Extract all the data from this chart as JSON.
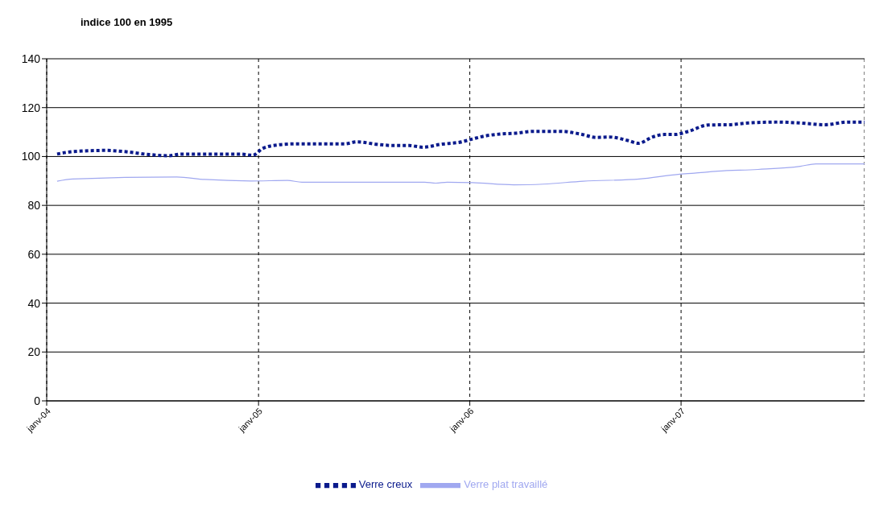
{
  "chart_data": {
    "type": "line",
    "title": "indice 100 en 1995",
    "xlim": [
      "2004-01-01",
      "2007-11-14"
    ],
    "xticks": [
      {
        "value": "2004-01-01",
        "label": "janv-04"
      },
      {
        "value": "2005-01-01",
        "label": "janv-05"
      },
      {
        "value": "2006-01-01",
        "label": "janv-06"
      },
      {
        "value": "2007-01-01",
        "label": "janv-07"
      }
    ],
    "ylim": [
      0,
      140
    ],
    "yticks": [
      0,
      20,
      40,
      60,
      80,
      100,
      120,
      140
    ],
    "grid": true,
    "legend": "bottom",
    "series": [
      {
        "name": "Verre creux",
        "color": "#0a1a8c",
        "line_style": "dotted",
        "x": [
          "2004-01-19",
          "2004-02-15",
          "2004-04-11",
          "2004-05-15",
          "2004-06-26",
          "2004-07-30",
          "2004-08-20",
          "2004-09-17",
          "2004-12-02",
          "2004-12-22",
          "2005-01-08",
          "2005-02-05",
          "2005-03-07",
          "2005-05-30",
          "2005-06-20",
          "2005-07-24",
          "2005-08-21",
          "2005-09-18",
          "2005-10-12",
          "2005-11-12",
          "2005-12-18",
          "2006-01-06",
          "2006-01-27",
          "2006-02-23",
          "2006-03-20",
          "2006-04-20",
          "2006-06-07",
          "2006-07-11",
          "2006-08-08",
          "2006-08-29",
          "2006-10-02",
          "2006-10-19",
          "2006-11-13",
          "2006-12-03",
          "2006-12-21",
          "2007-01-14",
          "2007-02-17",
          "2007-03-24",
          "2007-04-27",
          "2007-06-15",
          "2007-07-26",
          "2007-09-06",
          "2007-10-17",
          "2007-11-14"
        ],
        "values": [
          101,
          102,
          102.5,
          102,
          100.8,
          100.3,
          101,
          101,
          101,
          100.5,
          103.3,
          104.8,
          105.2,
          105.2,
          106,
          105,
          104.5,
          104.5,
          103.8,
          105,
          106,
          107.2,
          108.4,
          109.2,
          109.5,
          110.3,
          110.3,
          109.2,
          107.8,
          108,
          106.5,
          105.4,
          108,
          109,
          109,
          110.3,
          112.9,
          113,
          113.7,
          114.1,
          113.7,
          113,
          114.1,
          114.1
        ]
      },
      {
        "name": "Verre plat travaillé",
        "color": "#a0a8f0",
        "line_style": "solid",
        "x": [
          "2004-01-19",
          "2004-02-15",
          "2004-08-13",
          "2004-09-30",
          "2004-12-19",
          "2005-02-20",
          "2005-03-17",
          "2005-10-15",
          "2005-11-03",
          "2005-11-23",
          "2006-01-06",
          "2006-03-18",
          "2006-05-08",
          "2006-07-16",
          "2006-10-21",
          "2006-12-27",
          "2007-01-24",
          "2007-03-05",
          "2007-05-14",
          "2007-07-26",
          "2007-08-22",
          "2007-11-14"
        ],
        "values": [
          89.9,
          90.8,
          91.6,
          90.6,
          90,
          90.2,
          89.5,
          89.5,
          89.1,
          89.5,
          89.3,
          88.4,
          88.7,
          89.9,
          90.8,
          92.7,
          93.2,
          94,
          94.7,
          96,
          97,
          97
        ]
      }
    ]
  }
}
